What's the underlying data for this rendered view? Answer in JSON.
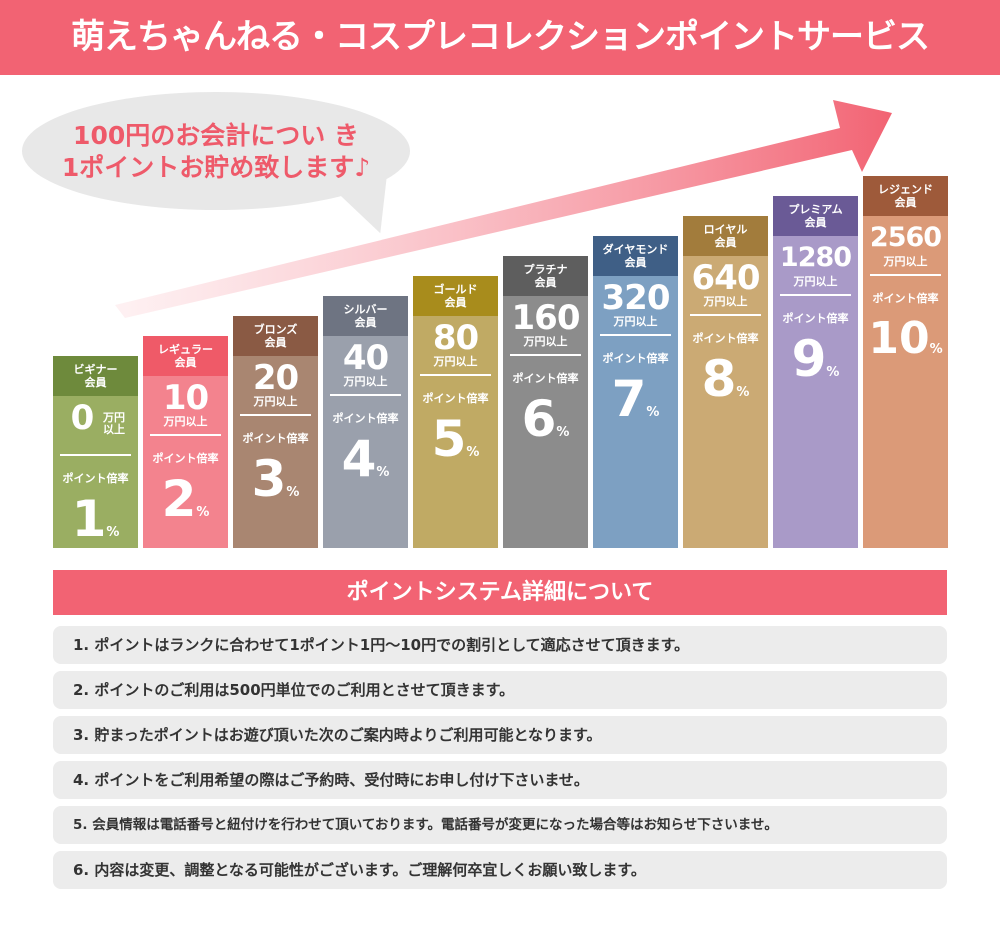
{
  "header": {
    "title": "萌えちゃんねる・コスプレコレクションポイントサービス"
  },
  "bubble": {
    "line1": "100円のお会計につい き",
    "line2": "1ポイントお貯め致します♪"
  },
  "colors": {
    "accent": "#f26373",
    "bubble_text": "#ee5a6a"
  },
  "tiers": [
    {
      "name": "ビギナー\n会員",
      "amount": "0",
      "unit": "万円\n以上",
      "rate_label": "ポイント倍率",
      "rate": "1",
      "rate_unit": "%",
      "color_head": "#6e8a3c",
      "color_body": "#9aae62"
    },
    {
      "name": "レギュラー\n会員",
      "amount": "10",
      "unit": "万円以上",
      "rate_label": "ポイント倍率",
      "rate": "2",
      "rate_unit": "%",
      "color_head": "#ef5a68",
      "color_body": "#f3838e"
    },
    {
      "name": "ブロンズ\n会員",
      "amount": "20",
      "unit": "万円以上",
      "rate_label": "ポイント倍率",
      "rate": "3",
      "rate_unit": "%",
      "color_head": "#8a5a44",
      "color_body": "#a98671"
    },
    {
      "name": "シルバー\n会員",
      "amount": "40",
      "unit": "万円以上",
      "rate_label": "ポイント倍率",
      "rate": "4",
      "rate_unit": "%",
      "color_head": "#6e7482",
      "color_body": "#9aa0ac"
    },
    {
      "name": "ゴールド\n会員",
      "amount": "80",
      "unit": "万円以上",
      "rate_label": "ポイント倍率",
      "rate": "5",
      "rate_unit": "%",
      "color_head": "#a88c1c",
      "color_body": "#c0aa64"
    },
    {
      "name": "プラチナ\n会員",
      "amount": "160",
      "unit": "万円以上",
      "rate_label": "ポイント倍率",
      "rate": "6",
      "rate_unit": "%",
      "color_head": "#5e5e5e",
      "color_body": "#8c8c8c"
    },
    {
      "name": "ダイヤモンド\n会員",
      "amount": "320",
      "unit": "万円以上",
      "rate_label": "ポイント倍率",
      "rate": "7",
      "rate_unit": "%",
      "color_head": "#3f5f86",
      "color_body": "#7da0c2"
    },
    {
      "name": "ロイヤル\n会員",
      "amount": "640",
      "unit": "万円以上",
      "rate_label": "ポイント倍率",
      "rate": "8",
      "rate_unit": "%",
      "color_head": "#a27c3c",
      "color_body": "#cbaa74"
    },
    {
      "name": "プレミアム\n会員",
      "amount": "1280",
      "unit": "万円以上",
      "rate_label": "ポイント倍率",
      "rate": "9",
      "rate_unit": "%",
      "color_head": "#6a5a96",
      "color_body": "#a99ac8"
    },
    {
      "name": "レジェンド\n会員",
      "amount": "2560",
      "unit": "万円以上",
      "rate_label": "ポイント倍率",
      "rate": "10",
      "rate_unit": "%",
      "color_head": "#9e5a3a",
      "color_body": "#db9a78"
    }
  ],
  "details": {
    "title": "ポイントシステム詳細について",
    "items": [
      "1. ポイントはランクに合わせて1ポイント1円～10円での割引として適応させて頂きます。",
      "2. ポイントのご利用は500円単位でのご利用とさせて頂きます。",
      "3. 貯まったポイントはお遊び頂いた次のご案内時よりご利用可能となります。",
      "4. ポイントをご利用希望の際はご予約時、受付時にお申し付け下さいませ。",
      "5. 会員情報は電話番号と紐付けを行わせて頂いております。電話番号が変更になった場合等はお知らせ下さいませ。",
      "6. 内容は変更、調整となる可能性がございます。ご理解何卒宜しくお願い致します。"
    ]
  }
}
